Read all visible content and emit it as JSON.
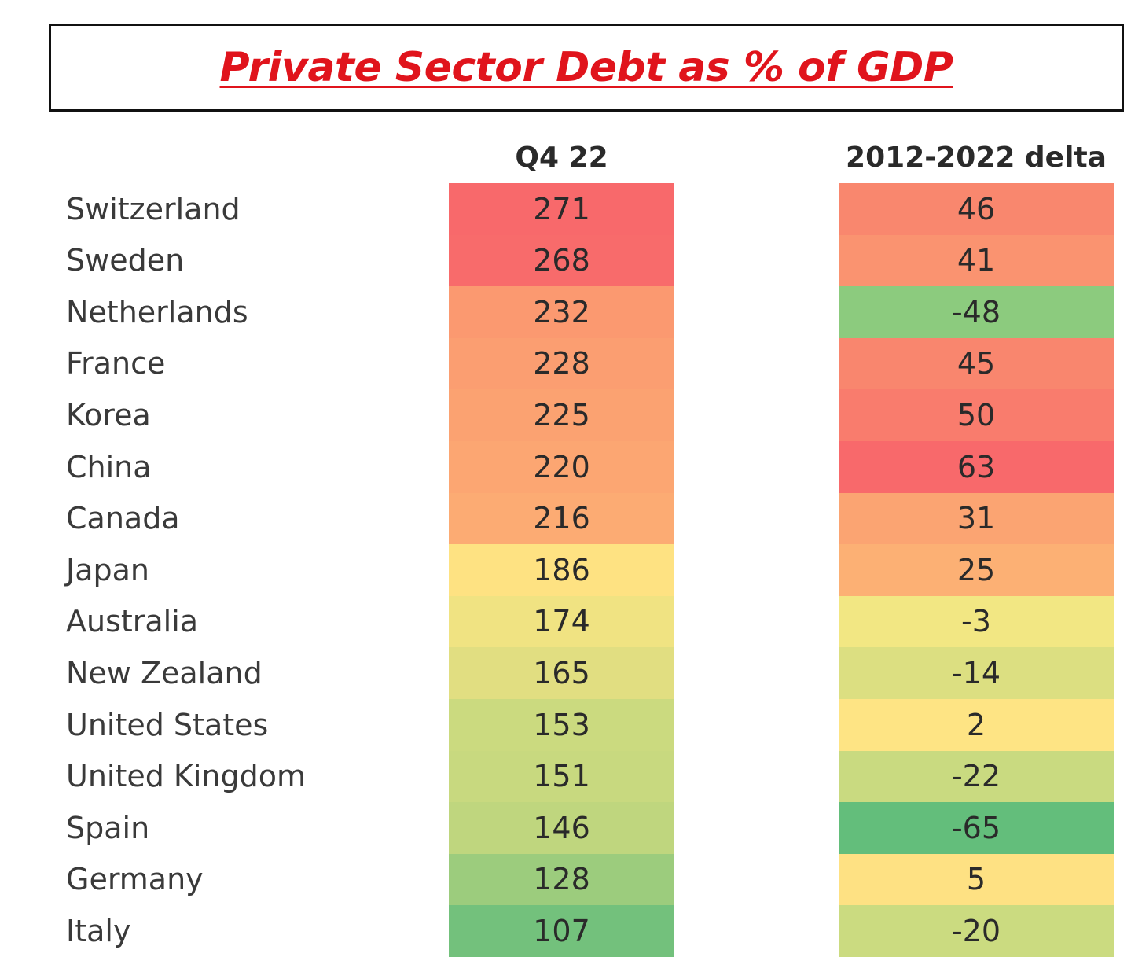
{
  "chart_data": {
    "type": "table",
    "title": "Private Sector Debt as % of GDP",
    "columns": [
      "Q4 22",
      "2012-2022 delta"
    ],
    "rows": [
      {
        "country": "Switzerland",
        "q4_22": 271,
        "delta": 46,
        "q4_color": "#f8696b",
        "delta_color": "#f9876e"
      },
      {
        "country": "Sweden",
        "q4_22": 268,
        "delta": 41,
        "q4_color": "#f86b6b",
        "delta_color": "#fa9370"
      },
      {
        "country": "Netherlands",
        "q4_22": 232,
        "delta": -48,
        "q4_color": "#fb9970",
        "delta_color": "#8ccb7e"
      },
      {
        "country": "France",
        "q4_22": 228,
        "delta": 45,
        "q4_color": "#fb9e71",
        "delta_color": "#f9866e"
      },
      {
        "country": "Korea",
        "q4_22": 225,
        "delta": 50,
        "q4_color": "#fba271",
        "delta_color": "#f97c6d"
      },
      {
        "country": "China",
        "q4_22": 220,
        "delta": 63,
        "q4_color": "#fca672",
        "delta_color": "#f8696b"
      },
      {
        "country": "Canada",
        "q4_22": 216,
        "delta": 31,
        "q4_color": "#fcab73",
        "delta_color": "#fba472"
      },
      {
        "country": "Japan",
        "q4_22": 186,
        "delta": 25,
        "q4_color": "#fee282",
        "delta_color": "#fcb074"
      },
      {
        "country": "Australia",
        "q4_22": 174,
        "delta": -3,
        "q4_color": "#f0e382",
        "delta_color": "#f2e783"
      },
      {
        "country": "New Zealand",
        "q4_22": 165,
        "delta": -14,
        "q4_color": "#e1de81",
        "delta_color": "#dcdf81"
      },
      {
        "country": "United States",
        "q4_22": 153,
        "delta": 2,
        "q4_color": "#cbda7f",
        "delta_color": "#fee484"
      },
      {
        "country": "United Kingdom",
        "q4_22": 151,
        "delta": -22,
        "q4_color": "#c8d97f",
        "delta_color": "#c9da80"
      },
      {
        "country": "Spain",
        "q4_22": 146,
        "delta": -65,
        "q4_color": "#bfd67e",
        "delta_color": "#63be7b"
      },
      {
        "country": "Germany",
        "q4_22": 128,
        "delta": 5,
        "q4_color": "#9ccc7d",
        "delta_color": "#fee183"
      },
      {
        "country": "Italy",
        "q4_22": 107,
        "delta": -20,
        "q4_color": "#73c17c",
        "delta_color": "#cbdb80"
      }
    ]
  }
}
